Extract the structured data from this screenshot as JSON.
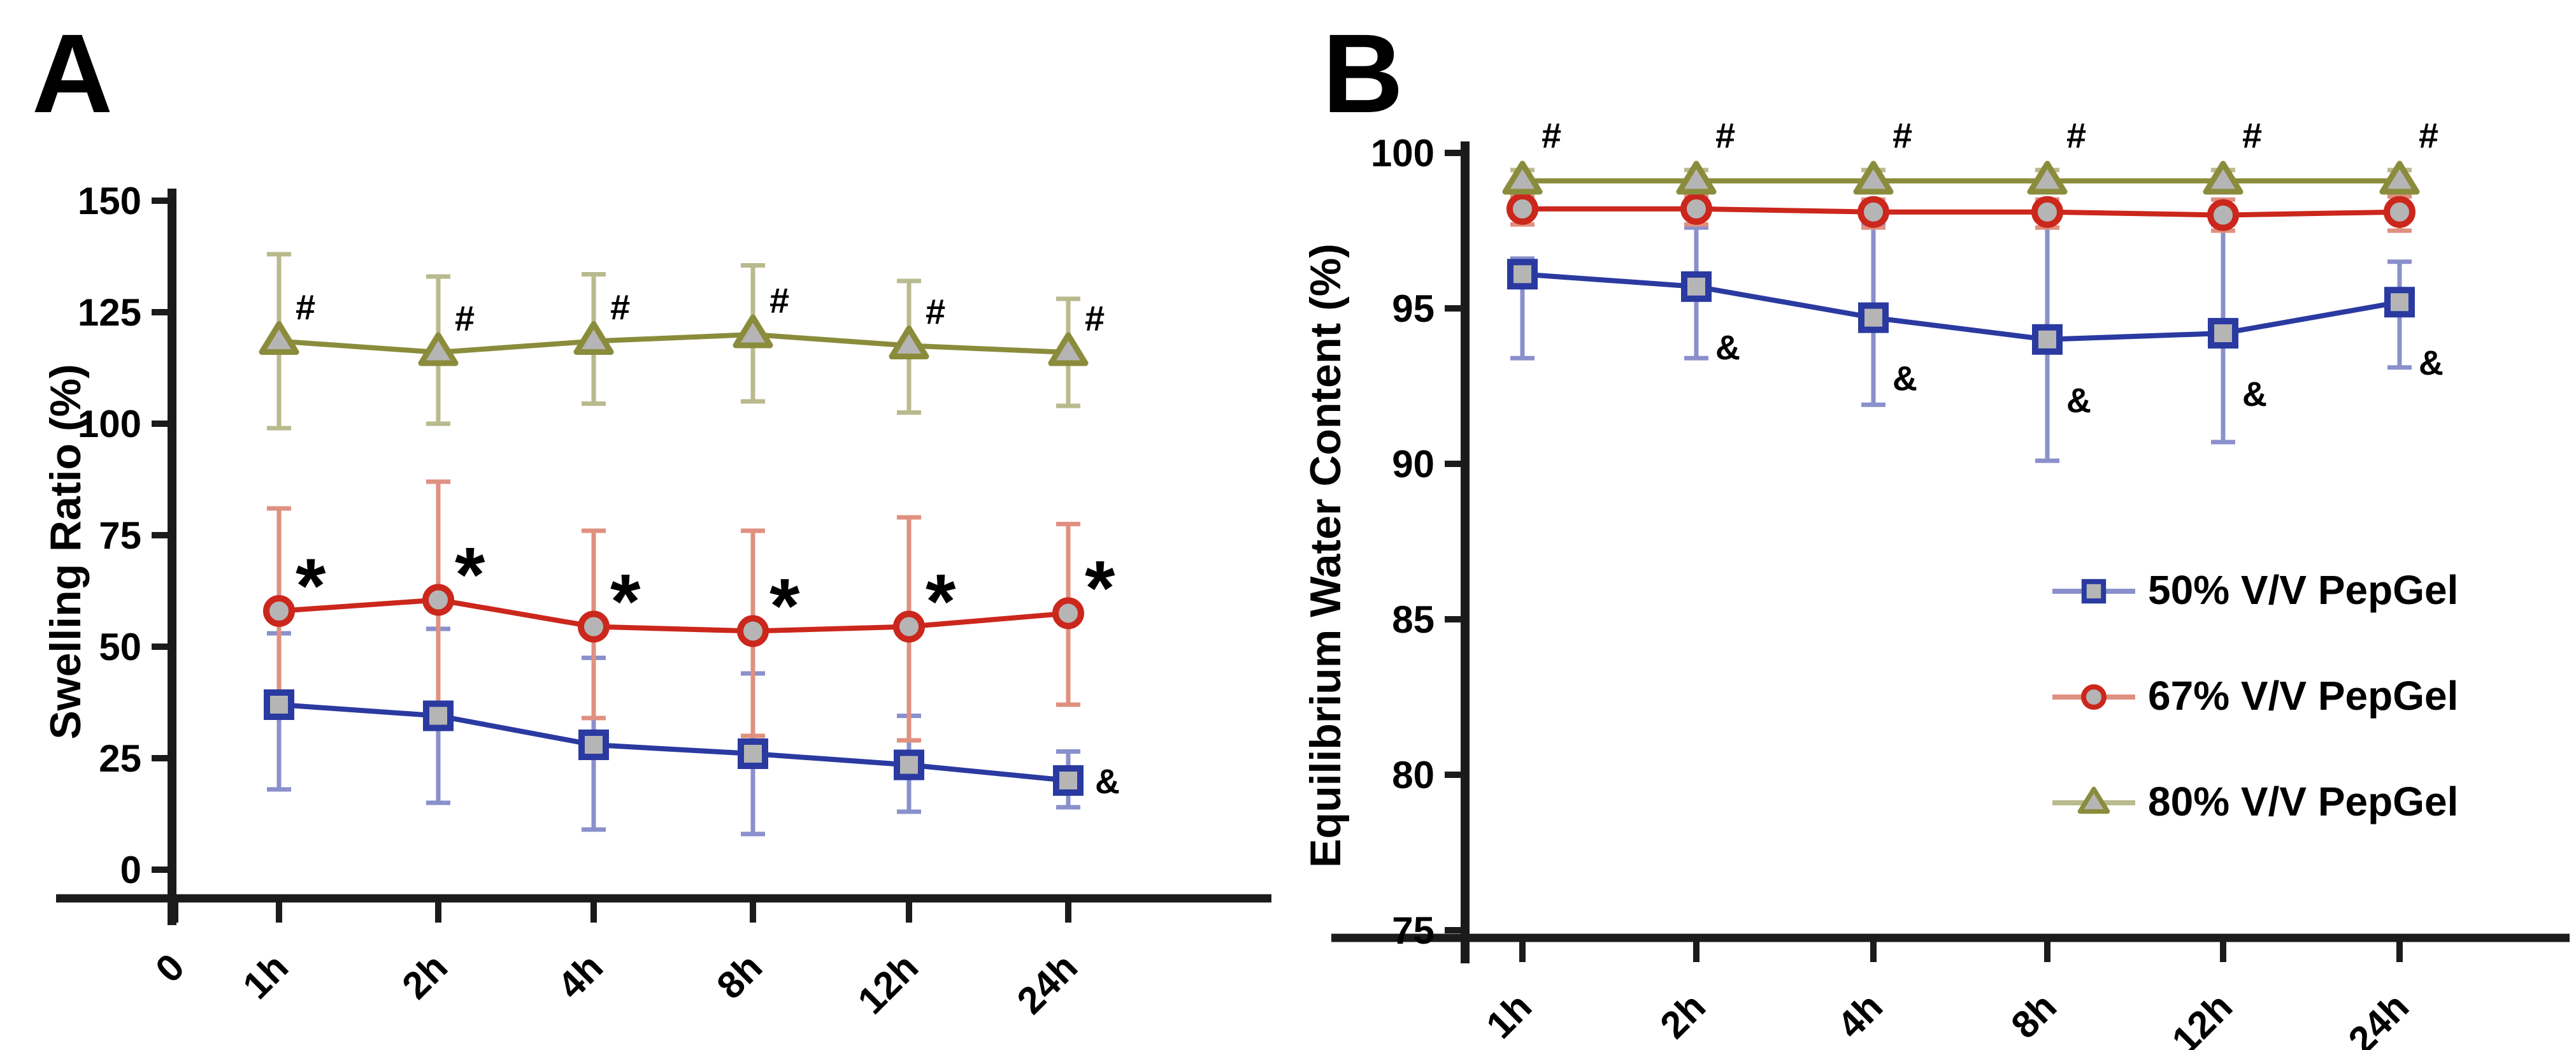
{
  "figure": {
    "background": "#ffffff",
    "panels": [
      {
        "label": "A",
        "ylabel": "Swelling Ratio (%)"
      },
      {
        "label": "B",
        "ylabel": "Equilibrium Water Content (%)"
      }
    ]
  },
  "legend": {
    "items": [
      {
        "label": "50% V/V PepGel",
        "marker": "square",
        "color": "#2a3aa0",
        "tint": "#8a90cb"
      },
      {
        "label": "67% V/V PepGel",
        "marker": "circle",
        "color": "#cb271c",
        "tint": "#e09080"
      },
      {
        "label": "80% V/V PepGel",
        "marker": "triangle",
        "color": "#8a8c3c",
        "tint": "#b9ba8d"
      }
    ]
  },
  "chart_data": [
    {
      "type": "line",
      "panel_label": "A",
      "title": "",
      "xlabel": "",
      "ylabel": "Swelling Ratio (%)",
      "categories": [
        "1h",
        "2h",
        "4h",
        "8h",
        "12h",
        "24h"
      ],
      "leading_tick": "0",
      "ylim": [
        0,
        150
      ],
      "yticks": [
        0,
        25,
        50,
        75,
        100,
        125,
        150
      ],
      "grid": false,
      "legend_position": "none",
      "marker_fill": "#b5b5b5",
      "series": [
        {
          "name": "50% V/V PepGel",
          "marker": "square",
          "color": "#2a3aa0",
          "tint": "#8a90cb",
          "values": [
            37,
            34.5,
            28,
            26,
            23.5,
            20
          ],
          "err_lo": [
            18,
            15,
            9,
            8,
            13,
            14
          ],
          "err_hi": [
            53,
            54,
            47.5,
            44,
            34.5,
            26.5
          ],
          "annotations": [
            "",
            "",
            "",
            "",
            "",
            "&"
          ]
        },
        {
          "name": "67% V/V PepGel",
          "marker": "circle",
          "color": "#cb271c",
          "tint": "#e09080",
          "values": [
            58,
            60.5,
            54.5,
            53.5,
            54.5,
            57.5
          ],
          "err_lo": [
            35,
            33,
            34,
            30,
            29,
            37
          ],
          "err_hi": [
            81,
            87,
            76,
            76,
            79,
            77.5
          ],
          "annotations": [
            "*",
            "*",
            "*",
            "*",
            "*",
            "*"
          ]
        },
        {
          "name": "80% V/V PepGel",
          "marker": "triangle",
          "color": "#8a8c3c",
          "tint": "#b9ba8d",
          "values": [
            118.5,
            116,
            118.5,
            120,
            117.5,
            116
          ],
          "err_lo": [
            99,
            100,
            104.5,
            105,
            102.5,
            104
          ],
          "err_hi": [
            138,
            133,
            133.5,
            135.5,
            132,
            128
          ],
          "annotations": [
            "#",
            "#",
            "#",
            "#",
            "#",
            "#"
          ]
        }
      ]
    },
    {
      "type": "line",
      "panel_label": "B",
      "title": "",
      "xlabel": "",
      "ylabel": "Equilibrium Water Content (%)",
      "categories": [
        "1h",
        "2h",
        "4h",
        "8h",
        "12h",
        "24h"
      ],
      "leading_tick": null,
      "ylim": [
        75,
        100
      ],
      "yticks": [
        75,
        80,
        85,
        90,
        95,
        100
      ],
      "grid": false,
      "legend_position": "right-inside",
      "marker_fill": "#b5b5b5",
      "series": [
        {
          "name": "50% V/V PepGel",
          "marker": "square",
          "color": "#2a3aa0",
          "tint": "#8a90cb",
          "values": [
            96.1,
            95.7,
            94.7,
            94.0,
            94.2,
            95.2
          ],
          "err_lo": [
            93.4,
            93.4,
            91.9,
            90.1,
            90.7,
            93.1
          ],
          "err_hi": [
            96.6,
            97.6,
            97.7,
            98.0,
            97.7,
            96.5
          ],
          "annotations": [
            "",
            "&",
            "&",
            "&",
            "&",
            "&"
          ]
        },
        {
          "name": "67% V/V PepGel",
          "marker": "circle",
          "color": "#cb271c",
          "tint": "#e09080",
          "values": [
            98.2,
            98.2,
            98.1,
            98.1,
            98.0,
            98.1
          ],
          "err_lo": [
            97.7,
            97.7,
            97.6,
            97.6,
            97.5,
            97.5
          ],
          "err_hi": [
            98.6,
            98.6,
            98.5,
            98.5,
            98.5,
            98.6
          ],
          "annotations": [
            "",
            "",
            "",
            "",
            "",
            ""
          ]
        },
        {
          "name": "80% V/V PepGel",
          "marker": "triangle",
          "color": "#8a8c3c",
          "tint": "#b9ba8d",
          "values": [
            99.1,
            99.1,
            99.1,
            99.1,
            99.1,
            99.1
          ],
          "err_lo": [
            98.75,
            98.75,
            98.75,
            98.75,
            98.75,
            98.75
          ],
          "err_hi": [
            99.45,
            99.45,
            99.45,
            99.45,
            99.45,
            99.45
          ],
          "annotations": [
            "#",
            "#",
            "#",
            "#",
            "#",
            "#"
          ]
        }
      ]
    }
  ]
}
